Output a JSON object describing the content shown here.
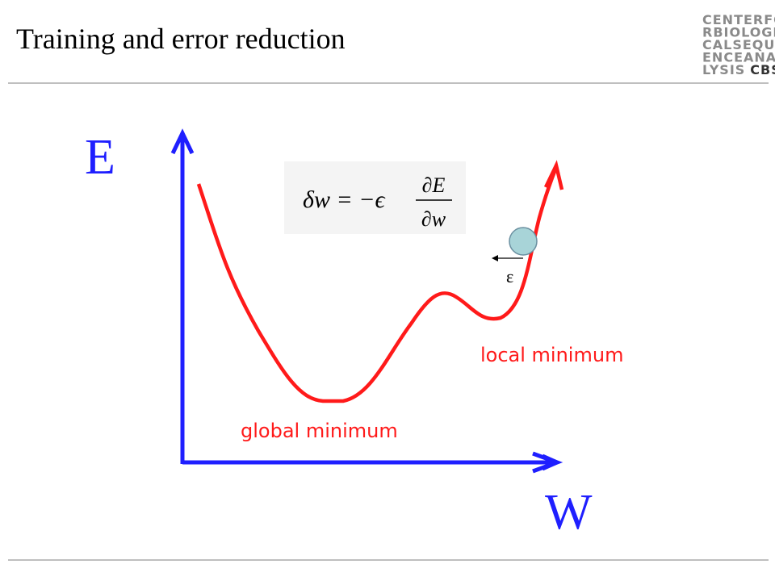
{
  "header": {
    "title": "Training and error reduction",
    "logo": {
      "lines": [
        "CENTERFO",
        "RBIOLOGI",
        "CALSEQU",
        "ENCEANA",
        "LYSIS"
      ],
      "accent": "CBS"
    }
  },
  "diagram": {
    "y_axis_label": "E",
    "x_axis_label": "W",
    "formula": {
      "lhs": "δw = −ϵ",
      "numerator": "∂E",
      "denominator": "∂w"
    },
    "global_label": "global minimum",
    "local_label": "local minimum",
    "step_label": "ε"
  }
}
